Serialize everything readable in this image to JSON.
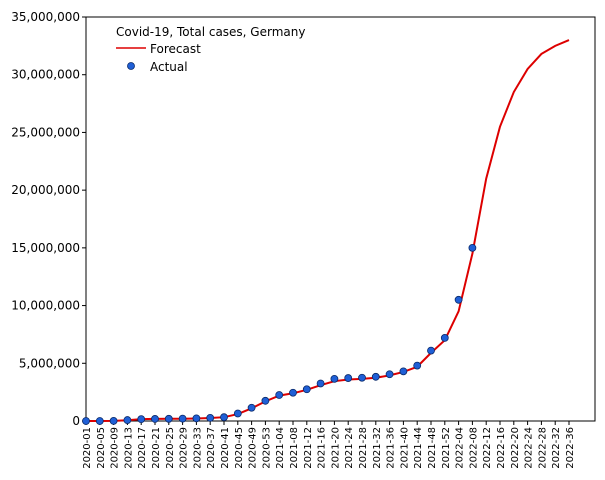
{
  "chart_data": {
    "type": "line",
    "title": "Covid-19, Total cases, Germany",
    "categories": [
      "2020-01",
      "2020-05",
      "2020-09",
      "2020-13",
      "2020-17",
      "2020-21",
      "2020-25",
      "2020-29",
      "2020-33",
      "2020-37",
      "2020-41",
      "2020-45",
      "2020-49",
      "2020-53",
      "2021-04",
      "2021-08",
      "2021-12",
      "2021-16",
      "2021-20",
      "2021-24",
      "2021-28",
      "2021-32",
      "2021-36",
      "2021-40",
      "2021-44",
      "2021-48",
      "2021-52",
      "2022-04",
      "2022-08",
      "2022-12",
      "2022-16",
      "2022-20",
      "2022-24",
      "2022-28",
      "2022-32",
      "2022-36"
    ],
    "series": [
      {
        "name": "Forecast",
        "color": "#dd0000",
        "values": [
          0,
          0,
          10000,
          70000,
          160000,
          180000,
          190000,
          200000,
          220000,
          260000,
          330000,
          600000,
          1100000,
          1700000,
          2200000,
          2400000,
          2700000,
          3100000,
          3450000,
          3600000,
          3650000,
          3750000,
          3950000,
          4250000,
          4700000,
          5900000,
          7000000,
          9500000,
          14500000,
          21000000,
          25500000,
          28500000,
          30500000,
          31800000,
          32500000,
          33000000
        ]
      },
      {
        "name": "Actual",
        "color": "#1f5fd6",
        "values": [
          0,
          0,
          10000,
          80000,
          160000,
          180000,
          190000,
          205000,
          230000,
          270000,
          330000,
          650000,
          1150000,
          1750000,
          2250000,
          2450000,
          2750000,
          3250000,
          3650000,
          3720000,
          3750000,
          3830000,
          4050000,
          4300000,
          4800000,
          6100000,
          7200000,
          10500000,
          15000000,
          null,
          null,
          null,
          null,
          null,
          null,
          null
        ]
      }
    ],
    "ylim": [
      0,
      35000000
    ],
    "yticks": [
      0,
      {
        "value": 5000000,
        "label": "5,000,000"
      },
      {
        "value": 10000000,
        "label": "10,000,000"
      },
      {
        "value": 15000000,
        "label": "15,000,000"
      },
      {
        "value": 20000000,
        "label": "20,000,000"
      },
      {
        "value": 25000000,
        "label": "25,000,000"
      },
      {
        "value": 30000000,
        "label": "30,000,000"
      },
      {
        "value": 35000000,
        "label": "35,000,000"
      }
    ],
    "legend": "upper left"
  }
}
